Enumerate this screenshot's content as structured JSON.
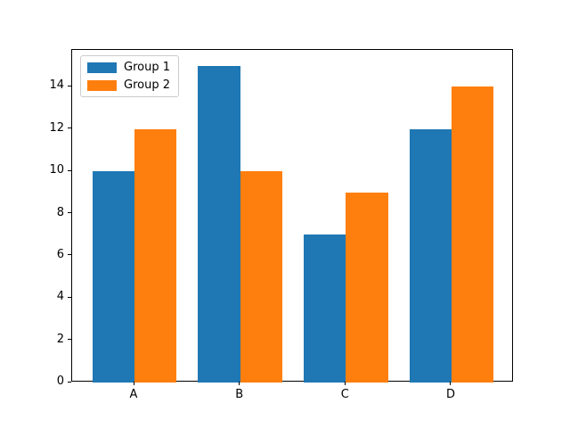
{
  "chart_data": {
    "type": "bar",
    "title": "",
    "xlabel": "",
    "ylabel": "",
    "categories": [
      "A",
      "B",
      "C",
      "D"
    ],
    "series": [
      {
        "name": "Group 1",
        "color": "#1f77b4",
        "values": [
          10,
          15,
          7,
          12
        ]
      },
      {
        "name": "Group 2",
        "color": "#ff7f0e",
        "values": [
          12,
          10,
          9,
          14
        ]
      }
    ],
    "bar_width": 0.4,
    "xlim": [
      -0.59,
      3.59
    ],
    "ylim": [
      0,
      15.75
    ],
    "yticks": [
      0,
      2,
      4,
      6,
      8,
      10,
      12,
      14
    ],
    "grid": false,
    "legend": {
      "position": "upper-left",
      "entries": [
        "Group 1",
        "Group 2"
      ],
      "border_color": "#cccccc",
      "background": "#ffffff"
    },
    "axis_color": "#000000",
    "plot_background": "#ffffff"
  }
}
